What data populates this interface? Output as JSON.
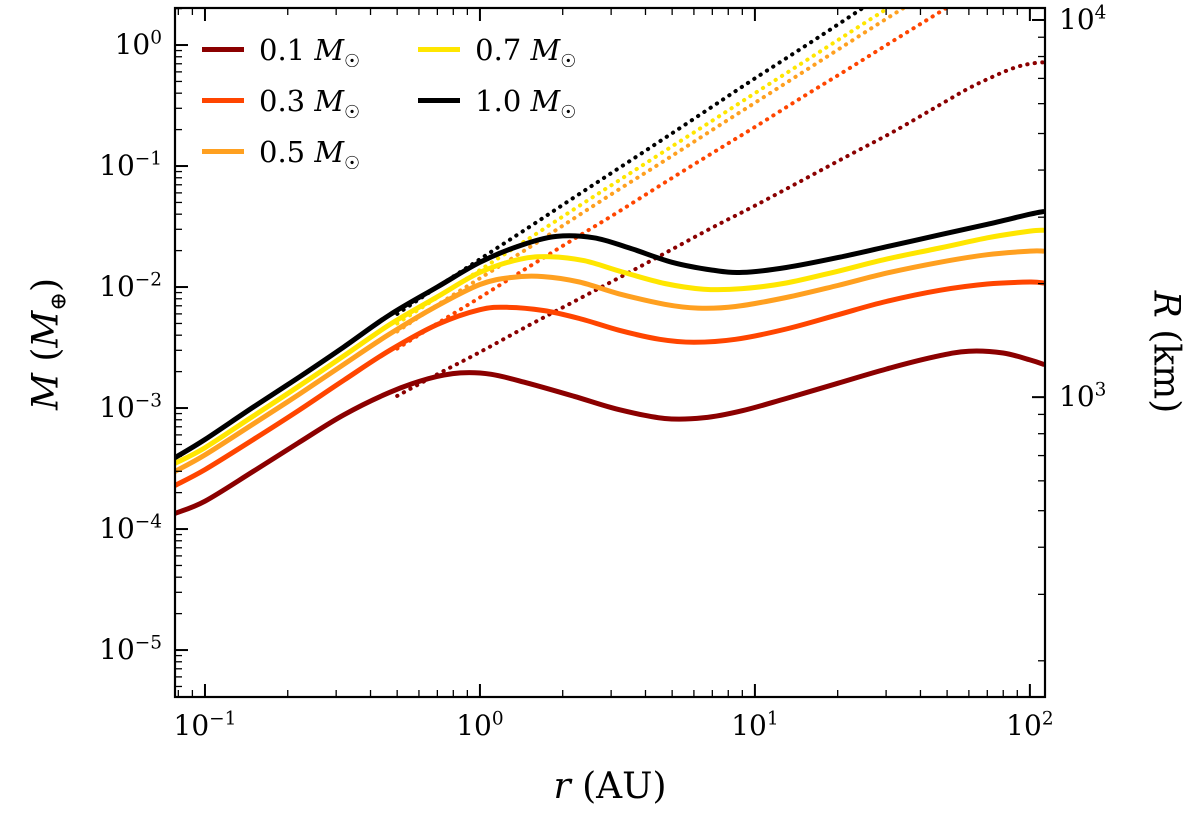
{
  "figure": {
    "background": "#ffffff",
    "text_color": "#000000"
  },
  "legend": {
    "position": "upper left",
    "columns": 2,
    "items": [
      {
        "label": "0.1 M☉",
        "color": "#8b0000"
      },
      {
        "label": "0.3 M☉",
        "color": "#ff4500"
      },
      {
        "label": "0.5 M☉",
        "color": "#ffa020"
      },
      {
        "label": "0.7 M☉",
        "color": "#ffe600"
      },
      {
        "label": "1.0 M☉",
        "color": "#000000"
      }
    ]
  },
  "chart_data": {
    "type": "line",
    "title": "",
    "xlabel": "r (AU)",
    "ylabel": "M (M⊕)",
    "ylabel_right": "R (km)",
    "x_scale": "log",
    "y_scale": "log",
    "grid": false,
    "legend_position": "upper left",
    "xlim_log10": [
      -1.109,
      2.055
    ],
    "ylim_log10": [
      -5.388,
      0.306
    ],
    "x_tick_exponents": [
      -1,
      0,
      1,
      2
    ],
    "y_tick_exponents": [
      -5,
      -4,
      -3,
      -2,
      -1,
      0
    ],
    "right_axis": {
      "unit": "km",
      "tick_exponents": [
        3,
        4
      ],
      "logM_at_logR3": -2.91,
      "logM_per_logR": 3.117
    },
    "series": [
      {
        "name": "0.1Msun-dotted",
        "label": null,
        "color": "#8b0000",
        "style": "dotted",
        "points": [
          [
            0.5,
            0.00126
          ],
          [
            0.7,
            0.0019
          ],
          [
            1,
            0.0029
          ],
          [
            1.5,
            0.0048
          ],
          [
            2.2,
            0.0076
          ],
          [
            3.2,
            0.0119
          ],
          [
            4.7,
            0.019
          ],
          [
            7,
            0.031
          ],
          [
            10,
            0.047
          ],
          [
            15,
            0.077
          ],
          [
            22,
            0.123
          ],
          [
            32,
            0.193
          ],
          [
            47,
            0.32
          ],
          [
            60,
            0.44
          ],
          [
            75,
            0.56
          ],
          [
            88,
            0.65
          ],
          [
            100,
            0.7
          ],
          [
            112,
            0.72
          ]
        ]
      },
      {
        "name": "0.3Msun-dotted",
        "label": null,
        "color": "#ff4500",
        "style": "dotted",
        "points": [
          [
            0.5,
            0.0031
          ],
          [
            0.7,
            0.005
          ],
          [
            1,
            0.0082
          ],
          [
            1.5,
            0.0146
          ],
          [
            2.2,
            0.025
          ],
          [
            3.2,
            0.042
          ],
          [
            4.7,
            0.073
          ],
          [
            7,
            0.128
          ],
          [
            10,
            0.21
          ],
          [
            15,
            0.375
          ],
          [
            22,
            0.64
          ],
          [
            32,
            1.09
          ],
          [
            47,
            1.87
          ],
          [
            70,
            3.3
          ]
        ]
      },
      {
        "name": "0.5Msun-dotted",
        "label": null,
        "color": "#ffa020",
        "style": "dotted",
        "points": [
          [
            0.5,
            0.0043
          ],
          [
            0.7,
            0.0071
          ],
          [
            1,
            0.0118
          ],
          [
            1.5,
            0.021
          ],
          [
            2.2,
            0.037
          ],
          [
            3.2,
            0.064
          ],
          [
            4.7,
            0.111
          ],
          [
            7,
            0.199
          ],
          [
            10,
            0.333
          ],
          [
            15,
            0.6
          ],
          [
            22,
            1.05
          ],
          [
            32,
            1.8
          ],
          [
            47,
            3.1
          ]
        ]
      },
      {
        "name": "0.7Msun-dotted",
        "label": null,
        "color": "#ffe600",
        "style": "dotted",
        "points": [
          [
            0.5,
            0.005
          ],
          [
            0.7,
            0.0082
          ],
          [
            1,
            0.0138
          ],
          [
            1.5,
            0.025
          ],
          [
            2.2,
            0.044
          ],
          [
            3.2,
            0.076
          ],
          [
            4.7,
            0.133
          ],
          [
            7,
            0.237
          ],
          [
            10,
            0.4
          ],
          [
            15,
            0.72
          ],
          [
            22,
            1.26
          ],
          [
            32,
            2.18
          ],
          [
            40,
            3.2
          ]
        ]
      },
      {
        "name": "1.0Msun-dotted",
        "label": null,
        "color": "#000000",
        "style": "dotted",
        "points": [
          [
            0.5,
            0.006
          ],
          [
            0.7,
            0.01
          ],
          [
            1,
            0.017
          ],
          [
            1.5,
            0.031
          ],
          [
            2.2,
            0.055
          ],
          [
            3.2,
            0.096
          ],
          [
            4.7,
            0.17
          ],
          [
            7,
            0.31
          ],
          [
            10,
            0.53
          ],
          [
            15,
            0.96
          ],
          [
            22,
            1.7
          ],
          [
            32,
            3.0
          ]
        ]
      },
      {
        "name": "0.1Msun",
        "label": "0.1 M☉",
        "color": "#8b0000",
        "style": "solid",
        "points": [
          [
            0.078,
            0.000135
          ],
          [
            0.1,
            0.00017
          ],
          [
            0.15,
            0.0003
          ],
          [
            0.22,
            0.00052
          ],
          [
            0.32,
            0.00088
          ],
          [
            0.47,
            0.00135
          ],
          [
            0.65,
            0.00175
          ],
          [
            0.85,
            0.00195
          ],
          [
            1.1,
            0.0019
          ],
          [
            1.5,
            0.0016
          ],
          [
            2.2,
            0.00125
          ],
          [
            3.2,
            0.00097
          ],
          [
            4.7,
            0.00082
          ],
          [
            6.5,
            0.00083
          ],
          [
            9,
            0.00095
          ],
          [
            13,
            0.0012
          ],
          [
            20,
            0.0016
          ],
          [
            30,
            0.0021
          ],
          [
            45,
            0.00265
          ],
          [
            60,
            0.00295
          ],
          [
            80,
            0.00285
          ],
          [
            100,
            0.0025
          ],
          [
            112,
            0.0023
          ]
        ]
      },
      {
        "name": "0.3Msun",
        "label": "0.3 M☉",
        "color": "#ff4500",
        "style": "solid",
        "points": [
          [
            0.078,
            0.00023
          ],
          [
            0.1,
            0.00031
          ],
          [
            0.15,
            0.00055
          ],
          [
            0.22,
            0.00096
          ],
          [
            0.32,
            0.0017
          ],
          [
            0.47,
            0.003
          ],
          [
            0.7,
            0.0049
          ],
          [
            1.0,
            0.0065
          ],
          [
            1.25,
            0.0068
          ],
          [
            1.7,
            0.0064
          ],
          [
            2.3,
            0.0055
          ],
          [
            3.2,
            0.0044
          ],
          [
            4.5,
            0.0037
          ],
          [
            6,
            0.0035
          ],
          [
            8.5,
            0.0037
          ],
          [
            13,
            0.0045
          ],
          [
            20,
            0.0059
          ],
          [
            30,
            0.0076
          ],
          [
            47,
            0.0094
          ],
          [
            70,
            0.0106
          ],
          [
            100,
            0.011
          ],
          [
            112,
            0.0108
          ]
        ]
      },
      {
        "name": "0.5Msun",
        "label": "0.5 M☉",
        "color": "#ffa020",
        "style": "solid",
        "points": [
          [
            0.078,
            0.0003
          ],
          [
            0.1,
            0.00041
          ],
          [
            0.15,
            0.00074
          ],
          [
            0.22,
            0.0013
          ],
          [
            0.32,
            0.0023
          ],
          [
            0.47,
            0.0041
          ],
          [
            0.7,
            0.007
          ],
          [
            1.0,
            0.0105
          ],
          [
            1.3,
            0.012
          ],
          [
            1.7,
            0.0122
          ],
          [
            2.3,
            0.011
          ],
          [
            3.2,
            0.0088
          ],
          [
            4.7,
            0.0072
          ],
          [
            6.2,
            0.0067
          ],
          [
            8.5,
            0.0069
          ],
          [
            13,
            0.0082
          ],
          [
            20,
            0.0103
          ],
          [
            30,
            0.013
          ],
          [
            47,
            0.016
          ],
          [
            70,
            0.0185
          ],
          [
            100,
            0.0198
          ],
          [
            112,
            0.0198
          ]
        ]
      },
      {
        "name": "0.7Msun",
        "label": "0.7 M☉",
        "color": "#ffe600",
        "style": "solid",
        "points": [
          [
            0.078,
            0.00035
          ],
          [
            0.1,
            0.00047
          ],
          [
            0.15,
            0.00086
          ],
          [
            0.22,
            0.00152
          ],
          [
            0.32,
            0.0027
          ],
          [
            0.47,
            0.0049
          ],
          [
            0.7,
            0.0083
          ],
          [
            1.0,
            0.0132
          ],
          [
            1.4,
            0.017
          ],
          [
            1.8,
            0.0178
          ],
          [
            2.4,
            0.0165
          ],
          [
            3.3,
            0.0133
          ],
          [
            4.7,
            0.0107
          ],
          [
            6.5,
            0.0096
          ],
          [
            9,
            0.0097
          ],
          [
            13,
            0.0108
          ],
          [
            20,
            0.0135
          ],
          [
            30,
            0.017
          ],
          [
            47,
            0.021
          ],
          [
            70,
            0.0255
          ],
          [
            100,
            0.029
          ],
          [
            112,
            0.0295
          ]
        ]
      },
      {
        "name": "1.0Msun",
        "label": "1.0 M☉",
        "color": "#000000",
        "style": "solid",
        "points": [
          [
            0.078,
            0.00039
          ],
          [
            0.1,
            0.00055
          ],
          [
            0.15,
            0.00102
          ],
          [
            0.22,
            0.0018
          ],
          [
            0.32,
            0.0032
          ],
          [
            0.47,
            0.0059
          ],
          [
            0.7,
            0.01
          ],
          [
            1.0,
            0.016
          ],
          [
            1.4,
            0.022
          ],
          [
            1.9,
            0.0262
          ],
          [
            2.6,
            0.0255
          ],
          [
            3.5,
            0.021
          ],
          [
            5,
            0.016
          ],
          [
            7,
            0.0138
          ],
          [
            9,
            0.0132
          ],
          [
            13,
            0.0145
          ],
          [
            20,
            0.0175
          ],
          [
            30,
            0.0215
          ],
          [
            47,
            0.027
          ],
          [
            70,
            0.033
          ],
          [
            100,
            0.04
          ],
          [
            112,
            0.042
          ]
        ]
      }
    ]
  }
}
